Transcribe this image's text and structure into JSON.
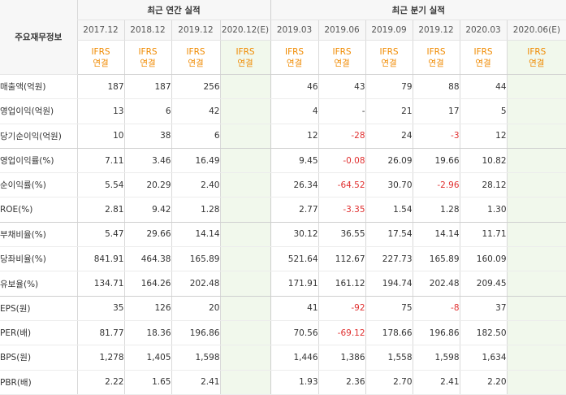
{
  "corner_label": "주요재무정보",
  "group_annual": "최근 연간 실적",
  "group_quarterly": "최근 분기 실적",
  "periods": [
    {
      "label": "2017.12",
      "estimate": false
    },
    {
      "label": "2018.12",
      "estimate": false
    },
    {
      "label": "2019.12",
      "estimate": false
    },
    {
      "label": "2020.12(E)",
      "estimate": true
    },
    {
      "label": "2019.03",
      "estimate": false
    },
    {
      "label": "2019.06",
      "estimate": false
    },
    {
      "label": "2019.09",
      "estimate": false
    },
    {
      "label": "2019.12",
      "estimate": false
    },
    {
      "label": "2020.03",
      "estimate": false
    },
    {
      "label": "2020.06(E)",
      "estimate": true
    }
  ],
  "accounting_line1": "IFRS",
  "accounting_line2": "연결",
  "rows": [
    {
      "label": "매출액(억원)",
      "values": [
        "187",
        "187",
        "256",
        "",
        "46",
        "43",
        "79",
        "88",
        "44",
        ""
      ]
    },
    {
      "label": "영업이익(억원)",
      "values": [
        "13",
        "6",
        "42",
        "",
        "4",
        "-",
        "21",
        "17",
        "5",
        ""
      ]
    },
    {
      "label": "당기순이익(억원)",
      "values": [
        "10",
        "38",
        "6",
        "",
        "12",
        "-28",
        "24",
        "-3",
        "12",
        ""
      ]
    },
    {
      "label": "영업이익률(%)",
      "values": [
        "7.11",
        "3.46",
        "16.49",
        "",
        "9.45",
        "-0.08",
        "26.09",
        "19.66",
        "10.82",
        ""
      ]
    },
    {
      "label": "순이익률(%)",
      "values": [
        "5.54",
        "20.29",
        "2.40",
        "",
        "26.34",
        "-64.52",
        "30.70",
        "-2.96",
        "28.12",
        ""
      ]
    },
    {
      "label": "ROE(%)",
      "values": [
        "2.81",
        "9.42",
        "1.28",
        "",
        "2.77",
        "-3.35",
        "1.54",
        "1.28",
        "1.30",
        ""
      ]
    },
    {
      "label": "부채비율(%)",
      "values": [
        "5.47",
        "29.66",
        "14.14",
        "",
        "30.12",
        "36.55",
        "17.54",
        "14.14",
        "11.71",
        ""
      ]
    },
    {
      "label": "당좌비율(%)",
      "values": [
        "841.91",
        "464.38",
        "165.89",
        "",
        "521.64",
        "112.67",
        "227.73",
        "165.89",
        "160.09",
        ""
      ]
    },
    {
      "label": "유보율(%)",
      "values": [
        "134.71",
        "164.26",
        "202.48",
        "",
        "171.91",
        "161.12",
        "194.74",
        "202.48",
        "209.45",
        ""
      ]
    },
    {
      "label": "EPS(원)",
      "values": [
        "35",
        "126",
        "20",
        "",
        "41",
        "-92",
        "75",
        "-8",
        "37",
        ""
      ]
    },
    {
      "label": "PER(배)",
      "values": [
        "81.77",
        "18.36",
        "196.86",
        "",
        "70.56",
        "-69.12",
        "178.66",
        "196.86",
        "182.50",
        ""
      ]
    },
    {
      "label": "BPS(원)",
      "values": [
        "1,278",
        "1,405",
        "1,598",
        "",
        "1,446",
        "1,386",
        "1,558",
        "1,598",
        "1,634",
        ""
      ]
    },
    {
      "label": "PBR(배)",
      "values": [
        "2.22",
        "1.65",
        "2.41",
        "",
        "1.93",
        "2.36",
        "2.70",
        "2.41",
        "2.20",
        ""
      ]
    }
  ],
  "colors": {
    "negative": "#e03030",
    "ifrs_text": "#f08a00",
    "estimate_bg": "#f1f8ec",
    "header_bg": "#f7f7f7"
  }
}
